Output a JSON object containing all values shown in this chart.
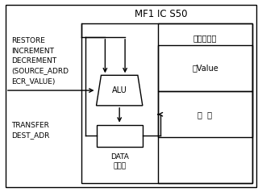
{
  "title": "MF1 IC S50",
  "chip_label": "芯片存储器",
  "source_value_label": "源Value",
  "result_label": "结  果",
  "alu_label": "ALU",
  "data_reg_label": "DATA\n寄存器",
  "left_text1": "RESTORE\nINCREMENT\nDECREMENT\n(SOURCE_ADRD\nECR_VALUE)",
  "left_text2": "TRANSFER\nDEST_ADR",
  "bg_color": "#ffffff",
  "box_color": "#000000",
  "text_color": "#000000",
  "title_fontsize": 8.5,
  "label_fontsize": 7,
  "small_fontsize": 6.5
}
